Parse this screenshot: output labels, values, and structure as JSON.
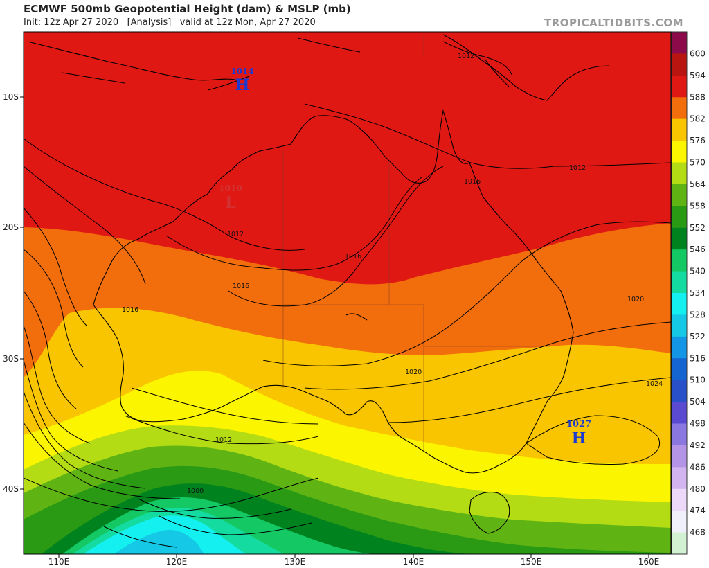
{
  "title": "ECMWF 500mb Geopotential Height (dam) & MSLP (mb)",
  "subtitle_init": "Init: 12z Apr 27 2020",
  "subtitle_analysis": "[Analysis]",
  "subtitle_valid": "valid at 12z Mon, Apr 27 2020",
  "brand": "TROPICALTIDBITS.COM",
  "axes": {
    "lon_labels": [
      "110E",
      "120E",
      "130E",
      "140E",
      "150E",
      "160E"
    ],
    "lat_labels": [
      "10S",
      "20S",
      "30S",
      "40S"
    ]
  },
  "legend": {
    "levels": [
      "600",
      "594",
      "588",
      "582",
      "576",
      "570",
      "564",
      "558",
      "552",
      "546",
      "540",
      "534",
      "528",
      "522",
      "516",
      "510",
      "504",
      "498",
      "492",
      "486",
      "480",
      "474",
      "468"
    ],
    "colors": [
      "#8c0a4a",
      "#b81410",
      "#e01814",
      "#f26d0c",
      "#f9c400",
      "#fbf500",
      "#b4dc14",
      "#5fb414",
      "#2a9a14",
      "#00821e",
      "#14c864",
      "#14dca0",
      "#14f0f0",
      "#14c8e6",
      "#1496e6",
      "#1464d2",
      "#2850c8",
      "#5a4ad2",
      "#8a78e0",
      "#b494e6",
      "#d2b4f0",
      "#ecd8f8",
      "#f0f0fa",
      "#d2f0d2"
    ]
  },
  "pressure_centers": [
    {
      "type": "H",
      "value": "1014"
    },
    {
      "type": "L",
      "value": "1010"
    },
    {
      "type": "H",
      "value": "1027"
    }
  ],
  "isobar_labels": [
    "1012",
    "1012",
    "1016",
    "1012",
    "1016",
    "1016",
    "1016",
    "1020",
    "1020",
    "1024",
    "1012",
    "1000"
  ]
}
